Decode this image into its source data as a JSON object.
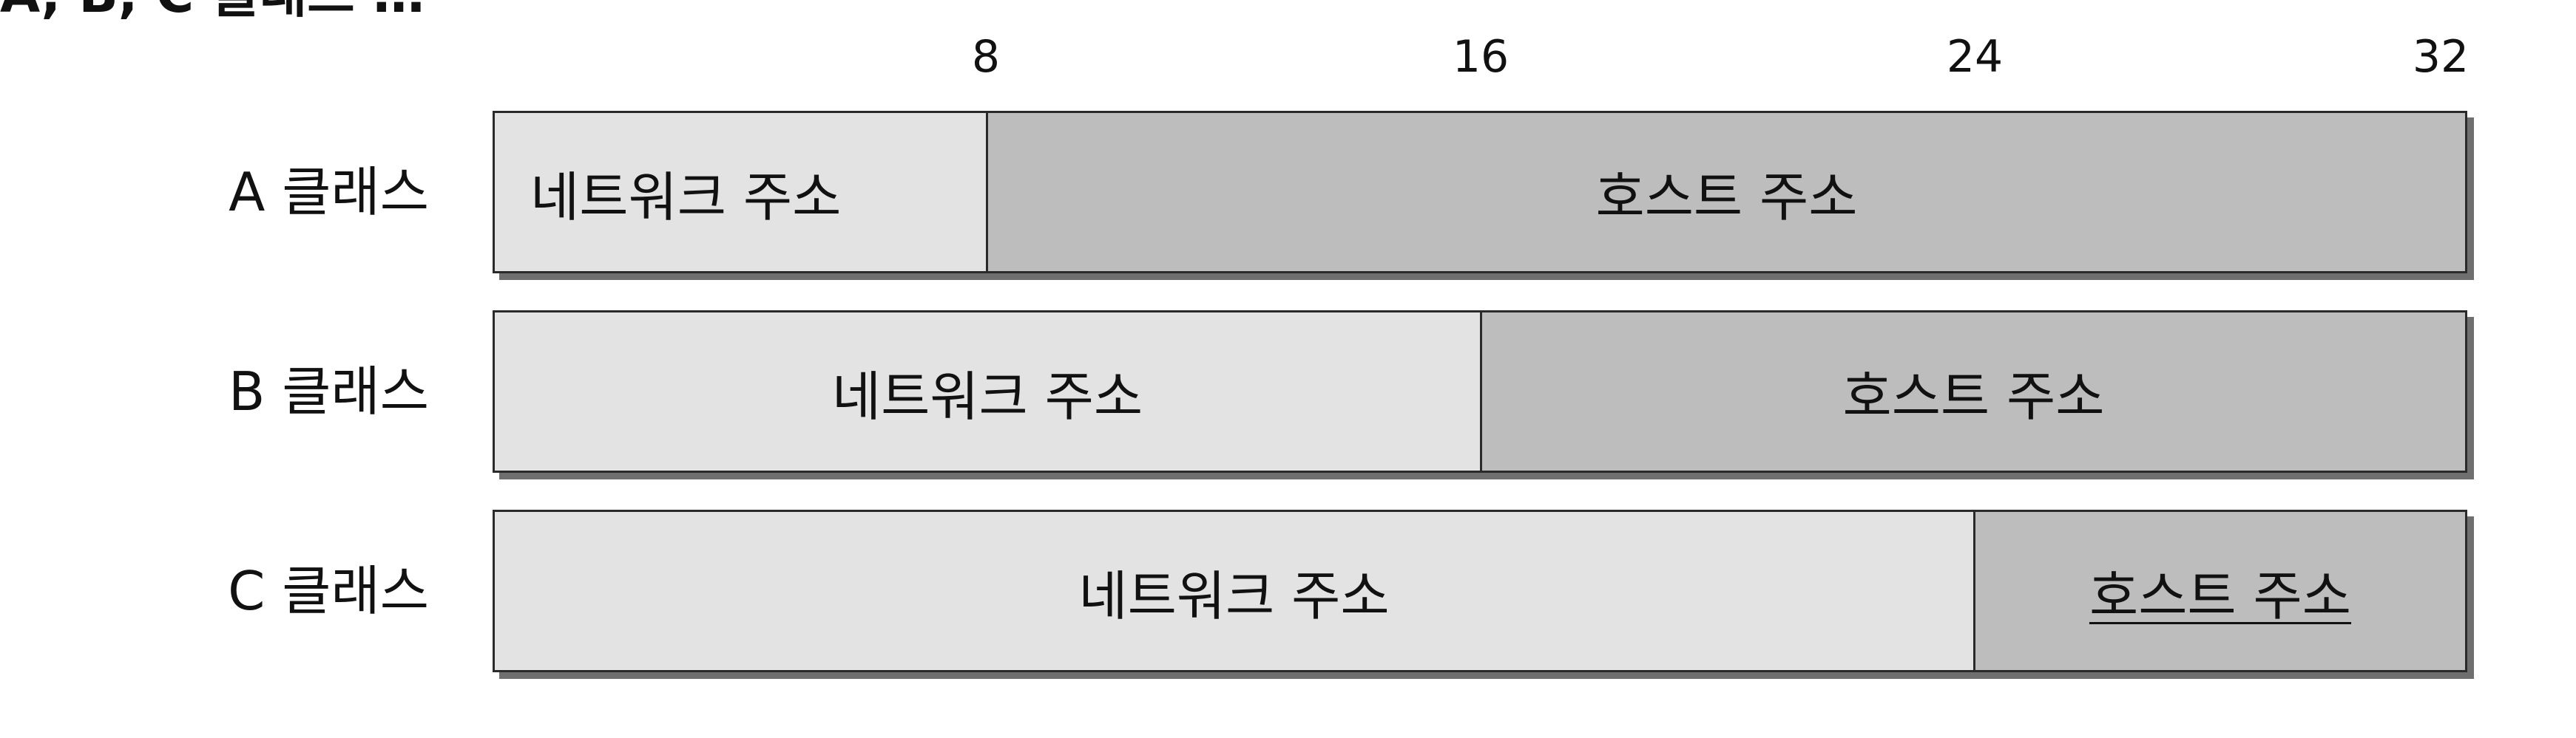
{
  "header_fragment": "A, B, C 클래스 …",
  "scale": {
    "ticks": [
      "8",
      "16",
      "24",
      "32"
    ],
    "total_bits": 32
  },
  "classes": [
    {
      "label": "A 클래스",
      "network_label": "네트워크 주소",
      "host_label": "호스트 주소",
      "network_bits": 8
    },
    {
      "label": "B 클래스",
      "network_label": "네트워크 주소",
      "host_label": "호스트 주소",
      "network_bits": 16
    },
    {
      "label": "C 클래스",
      "network_label": "네트워크 주소",
      "host_label": "호스트 주소",
      "network_bits": 24
    }
  ],
  "colors": {
    "network_fill": "#e3e3e3",
    "host_fill": "#bdbdbd",
    "border": "#2a2a2a",
    "shadow": "#6f6f6f"
  }
}
